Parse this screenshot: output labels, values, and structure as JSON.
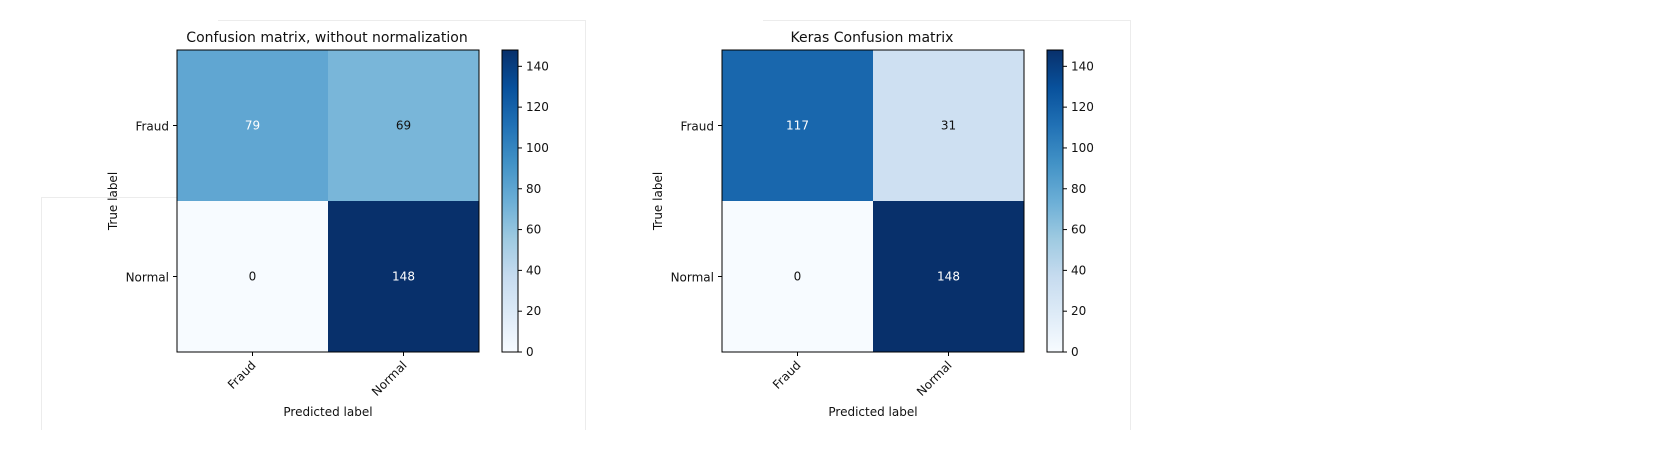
{
  "chart_data": [
    {
      "type": "heatmap",
      "title": "Confusion matrix, without normalization",
      "xlabel": "Predicted label",
      "ylabel": "True label",
      "x_categories": [
        "Fraud",
        "Normal"
      ],
      "y_categories": [
        "Fraud",
        "Normal"
      ],
      "values": [
        [
          79,
          69
        ],
        [
          0,
          148
        ]
      ],
      "colormap": "Blues",
      "vmin": 0,
      "vmax": 148,
      "colorbar_ticks": [
        0,
        20,
        40,
        60,
        80,
        100,
        120,
        140
      ]
    },
    {
      "type": "heatmap",
      "title": "Keras Confusion matrix",
      "xlabel": "Predicted label",
      "ylabel": "True label",
      "x_categories": [
        "Fraud",
        "Normal"
      ],
      "y_categories": [
        "Fraud",
        "Normal"
      ],
      "values": [
        [
          117,
          31
        ],
        [
          0,
          148
        ]
      ],
      "colormap": "Blues",
      "vmin": 0,
      "vmax": 148,
      "colorbar_ticks": [
        0,
        20,
        40,
        60,
        80,
        100,
        120,
        140
      ]
    }
  ]
}
